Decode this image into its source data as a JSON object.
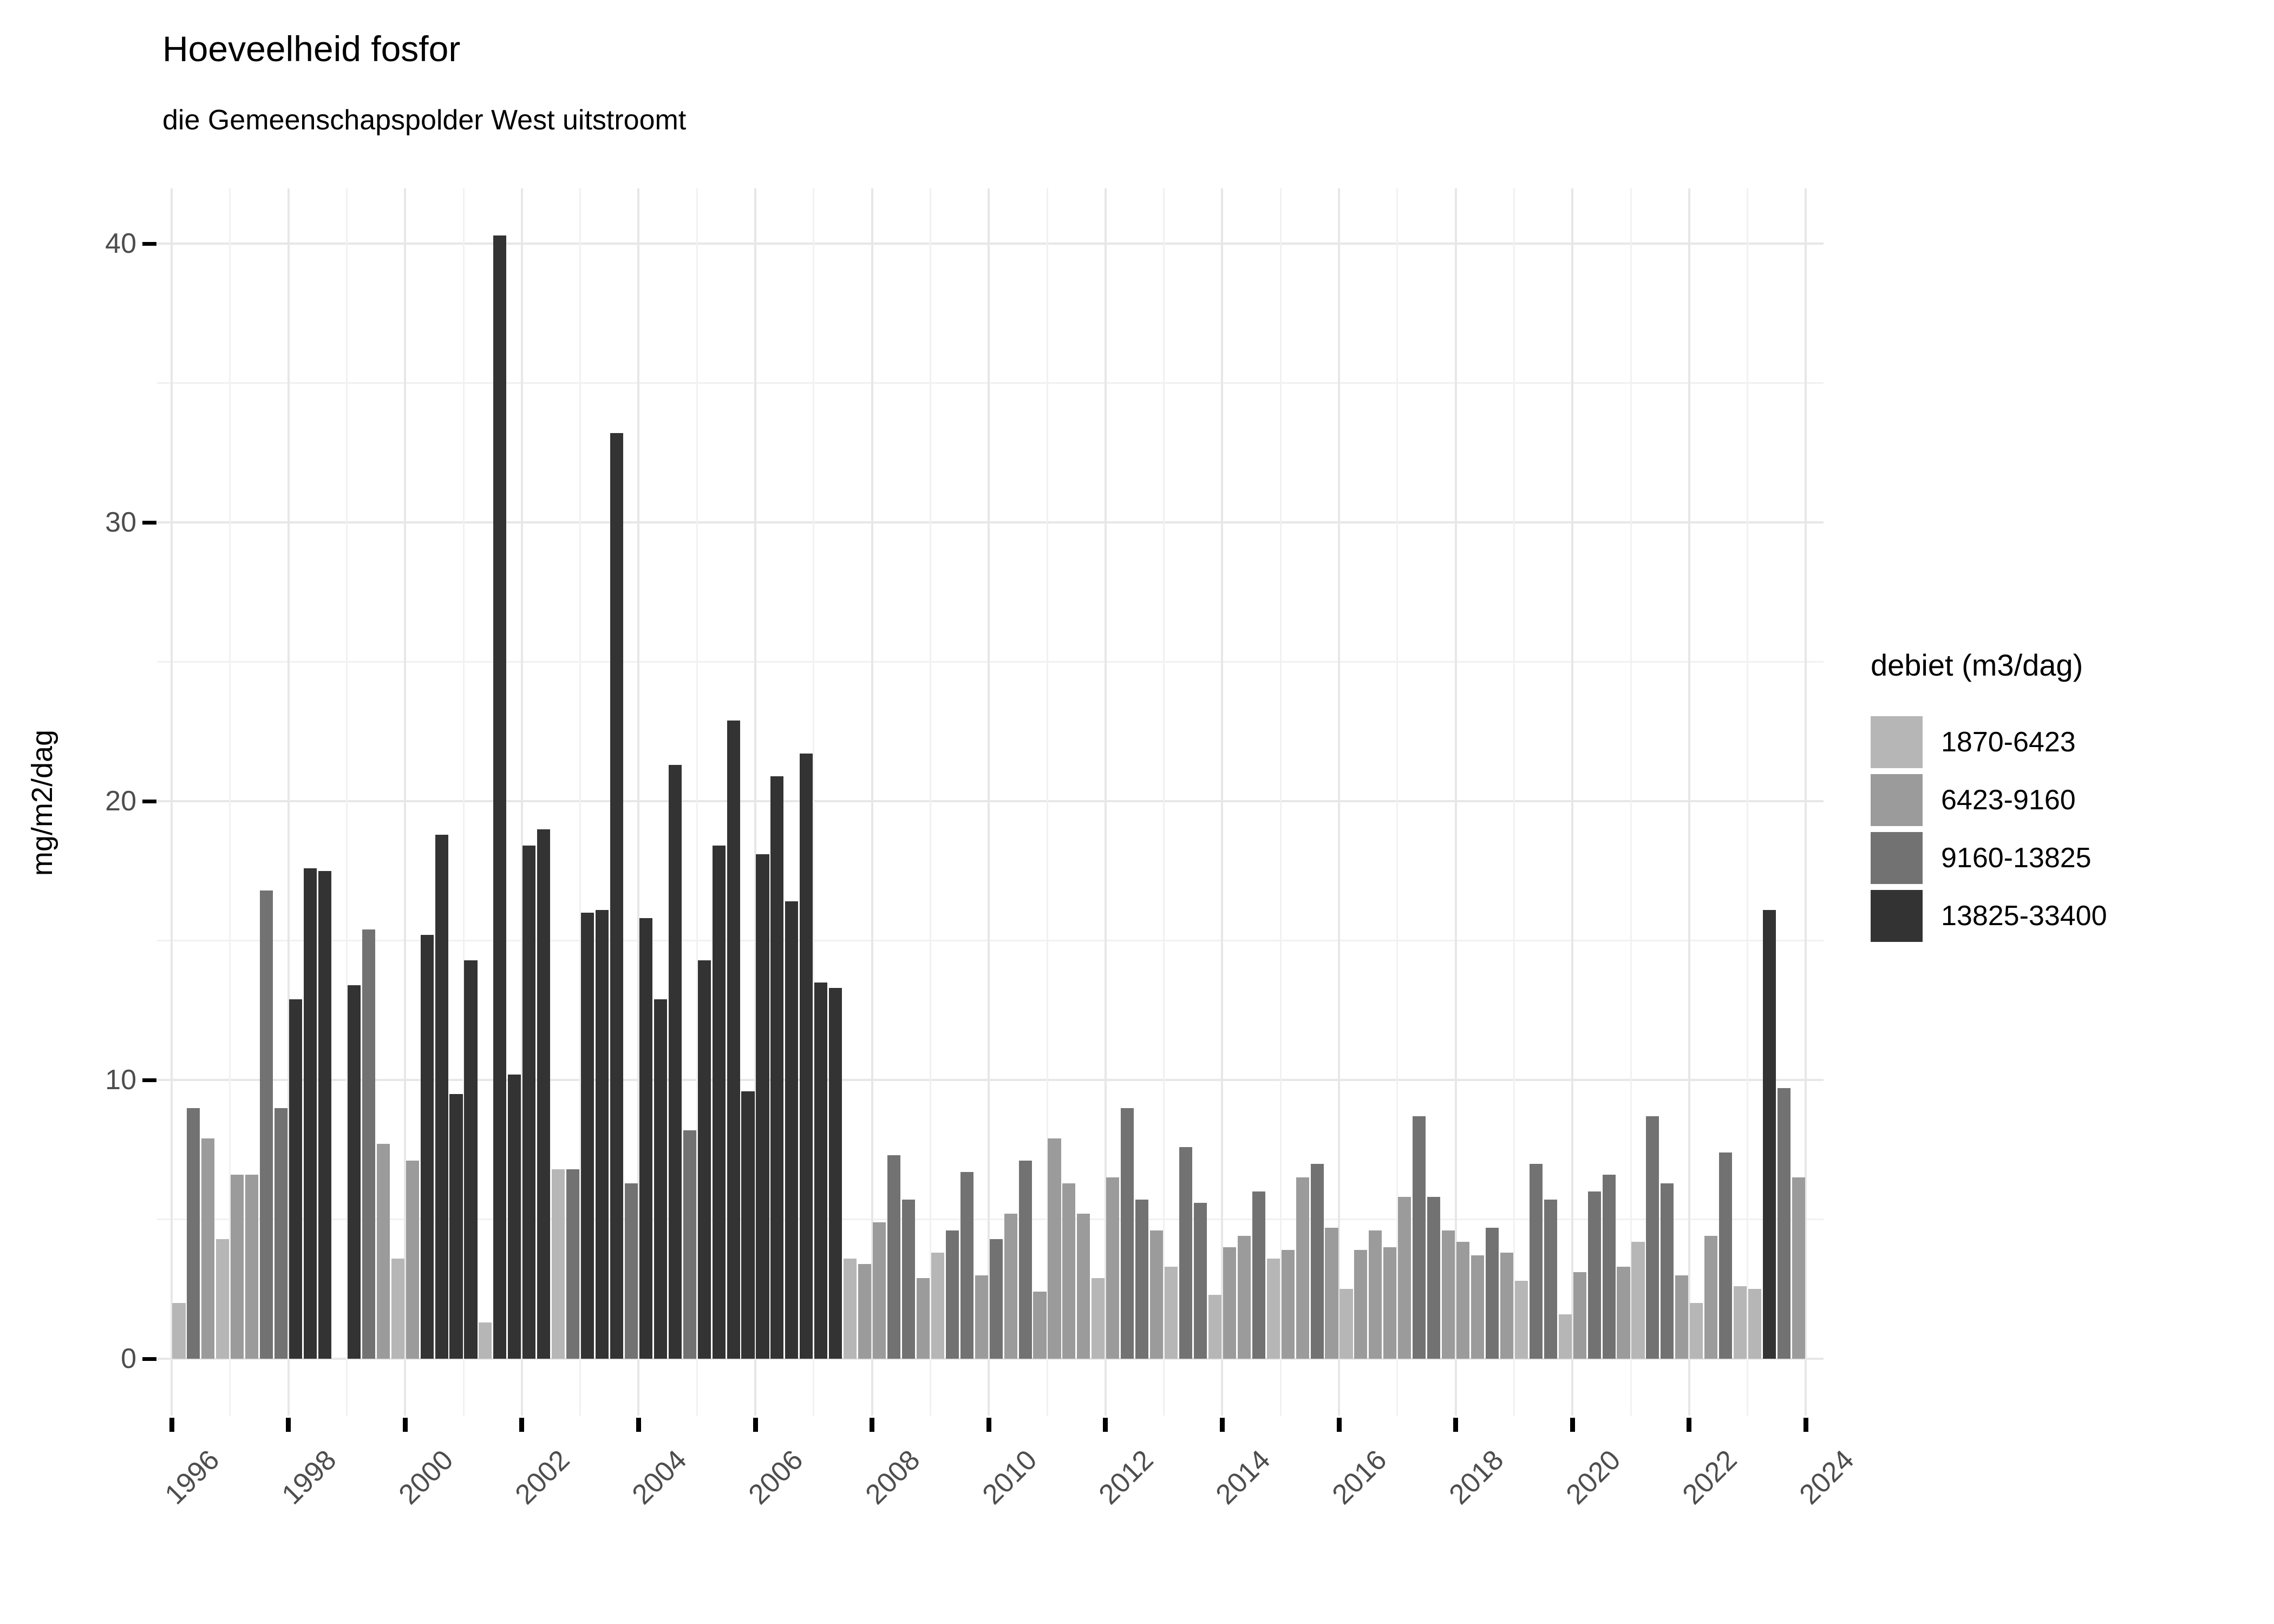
{
  "title": "Hoeveelheid fosfor",
  "subtitle": "die Gemeenschapspolder West uitstroomt",
  "y_axis_title": "mg/m2/dag",
  "legend": {
    "title": "debiet (m3/dag)",
    "items": [
      {
        "label": "1870-6423",
        "color": "#b6b6b6",
        "code": "L"
      },
      {
        "label": "6423-9160",
        "color": "#9b9b9b",
        "code": "M"
      },
      {
        "label": "9160-13825",
        "color": "#727272",
        "code": "D"
      },
      {
        "label": "13825-33400",
        "color": "#333333",
        "code": "K"
      }
    ]
  },
  "axis": {
    "y_tick_labels": [
      "0",
      "10",
      "20",
      "30",
      "40"
    ],
    "x_tick_labels": [
      "1996",
      "1998",
      "2000",
      "2002",
      "2004",
      "2006",
      "2008",
      "2010",
      "2012",
      "2014",
      "2016",
      "2018",
      "2020",
      "2022",
      "2024"
    ],
    "tick_color": "#000000",
    "tick_label_color": "#4d4d4d",
    "grid_major_color": "#e7e7e7",
    "grid_minor_color": "#f1f1f1"
  },
  "chart_data": {
    "type": "bar",
    "title": "Hoeveelheid fosfor",
    "subtitle": "die Gemeenschapspolder West uitstroomt",
    "xlabel": "",
    "ylabel": "mg/m2/dag",
    "ylim": [
      0,
      42
    ],
    "y_major_ticks": [
      0,
      10,
      20,
      30,
      40
    ],
    "y_minor_gridlines": [
      5,
      15,
      25,
      35
    ],
    "x_range_years": [
      1996,
      2024
    ],
    "grid": "on",
    "legend_position": "right",
    "legend_title": "debiet (m3/dag)",
    "bands": {
      "L": "1870-6423",
      "M": "6423-9160",
      "D": "9160-13825",
      "K": "13825-33400"
    },
    "series": [
      {
        "t": "1996Q1",
        "v": 2.0,
        "b": "L"
      },
      {
        "t": "1996Q2",
        "v": 9.0,
        "b": "D"
      },
      {
        "t": "1996Q3",
        "v": 7.9,
        "b": "M"
      },
      {
        "t": "1996Q4",
        "v": 4.3,
        "b": "L"
      },
      {
        "t": "1997Q1",
        "v": 6.6,
        "b": "M"
      },
      {
        "t": "1997Q2",
        "v": 6.6,
        "b": "M"
      },
      {
        "t": "1997Q3",
        "v": 16.8,
        "b": "D"
      },
      {
        "t": "1997Q4",
        "v": 9.0,
        "b": "D"
      },
      {
        "t": "1998Q1",
        "v": 12.9,
        "b": "K"
      },
      {
        "t": "1998Q2",
        "v": 17.6,
        "b": "K"
      },
      {
        "t": "1998Q3",
        "v": 17.5,
        "b": "K"
      },
      {
        "t": "1998Q4",
        "v": null,
        "b": null
      },
      {
        "t": "1999Q1",
        "v": 13.4,
        "b": "K"
      },
      {
        "t": "1999Q2",
        "v": 15.4,
        "b": "D"
      },
      {
        "t": "1999Q3",
        "v": 7.7,
        "b": "M"
      },
      {
        "t": "1999Q4",
        "v": 3.6,
        "b": "L"
      },
      {
        "t": "2000Q1",
        "v": 7.1,
        "b": "M"
      },
      {
        "t": "2000Q2",
        "v": 15.2,
        "b": "K"
      },
      {
        "t": "2000Q3",
        "v": 18.8,
        "b": "K"
      },
      {
        "t": "2000Q4",
        "v": 9.5,
        "b": "K"
      },
      {
        "t": "2001Q1",
        "v": 14.3,
        "b": "K"
      },
      {
        "t": "2001Q2",
        "v": 1.3,
        "b": "L"
      },
      {
        "t": "2001Q3",
        "v": 40.3,
        "b": "K"
      },
      {
        "t": "2001Q4",
        "v": 10.2,
        "b": "K"
      },
      {
        "t": "2002Q1",
        "v": 18.4,
        "b": "K"
      },
      {
        "t": "2002Q2",
        "v": 19.0,
        "b": "K"
      },
      {
        "t": "2002Q3",
        "v": 6.8,
        "b": "L"
      },
      {
        "t": "2002Q4",
        "v": 6.8,
        "b": "D"
      },
      {
        "t": "2003Q1",
        "v": 16.0,
        "b": "K"
      },
      {
        "t": "2003Q2",
        "v": 16.1,
        "b": "K"
      },
      {
        "t": "2003Q3",
        "v": 33.2,
        "b": "K"
      },
      {
        "t": "2003Q4",
        "v": 6.3,
        "b": "D"
      },
      {
        "t": "2004Q1",
        "v": 15.8,
        "b": "K"
      },
      {
        "t": "2004Q2",
        "v": 12.9,
        "b": "K"
      },
      {
        "t": "2004Q3",
        "v": 21.3,
        "b": "K"
      },
      {
        "t": "2004Q4",
        "v": 8.2,
        "b": "D"
      },
      {
        "t": "2005Q1",
        "v": 14.3,
        "b": "K"
      },
      {
        "t": "2005Q2",
        "v": 18.4,
        "b": "K"
      },
      {
        "t": "2005Q3",
        "v": 22.9,
        "b": "K"
      },
      {
        "t": "2005Q4",
        "v": 9.6,
        "b": "K"
      },
      {
        "t": "2006Q1",
        "v": 18.1,
        "b": "K"
      },
      {
        "t": "2006Q2",
        "v": 20.9,
        "b": "K"
      },
      {
        "t": "2006Q3",
        "v": 16.4,
        "b": "K"
      },
      {
        "t": "2006Q4",
        "v": 21.7,
        "b": "K"
      },
      {
        "t": "2007Q1",
        "v": 13.5,
        "b": "K"
      },
      {
        "t": "2007Q2",
        "v": 13.3,
        "b": "K"
      },
      {
        "t": "2007Q3",
        "v": 3.6,
        "b": "L"
      },
      {
        "t": "2007Q4",
        "v": 3.4,
        "b": "M"
      },
      {
        "t": "2008Q1",
        "v": 4.9,
        "b": "M"
      },
      {
        "t": "2008Q2",
        "v": 7.3,
        "b": "D"
      },
      {
        "t": "2008Q3",
        "v": 5.7,
        "b": "D"
      },
      {
        "t": "2008Q4",
        "v": 2.9,
        "b": "M"
      },
      {
        "t": "2009Q1",
        "v": 3.8,
        "b": "L"
      },
      {
        "t": "2009Q2",
        "v": 4.6,
        "b": "D"
      },
      {
        "t": "2009Q3",
        "v": 6.7,
        "b": "D"
      },
      {
        "t": "2009Q4",
        "v": 3.0,
        "b": "M"
      },
      {
        "t": "2010Q1",
        "v": 4.3,
        "b": "D"
      },
      {
        "t": "2010Q2",
        "v": 5.2,
        "b": "M"
      },
      {
        "t": "2010Q3",
        "v": 7.1,
        "b": "D"
      },
      {
        "t": "2010Q4",
        "v": 2.4,
        "b": "M"
      },
      {
        "t": "2011Q1",
        "v": 7.9,
        "b": "M"
      },
      {
        "t": "2011Q2",
        "v": 6.3,
        "b": "M"
      },
      {
        "t": "2011Q3",
        "v": 5.2,
        "b": "M"
      },
      {
        "t": "2011Q4",
        "v": 2.9,
        "b": "L"
      },
      {
        "t": "2012Q1",
        "v": 6.5,
        "b": "M"
      },
      {
        "t": "2012Q2",
        "v": 9.0,
        "b": "D"
      },
      {
        "t": "2012Q3",
        "v": 5.7,
        "b": "D"
      },
      {
        "t": "2012Q4",
        "v": 4.6,
        "b": "M"
      },
      {
        "t": "2013Q1",
        "v": 3.3,
        "b": "L"
      },
      {
        "t": "2013Q2",
        "v": 7.6,
        "b": "D"
      },
      {
        "t": "2013Q3",
        "v": 5.6,
        "b": "D"
      },
      {
        "t": "2013Q4",
        "v": 2.3,
        "b": "L"
      },
      {
        "t": "2014Q1",
        "v": 4.0,
        "b": "M"
      },
      {
        "t": "2014Q2",
        "v": 4.4,
        "b": "M"
      },
      {
        "t": "2014Q3",
        "v": 6.0,
        "b": "D"
      },
      {
        "t": "2014Q4",
        "v": 3.6,
        "b": "L"
      },
      {
        "t": "2015Q1",
        "v": 3.9,
        "b": "M"
      },
      {
        "t": "2015Q2",
        "v": 6.5,
        "b": "M"
      },
      {
        "t": "2015Q3",
        "v": 7.0,
        "b": "D"
      },
      {
        "t": "2015Q4",
        "v": 4.7,
        "b": "M"
      },
      {
        "t": "2016Q1",
        "v": 2.5,
        "b": "L"
      },
      {
        "t": "2016Q2",
        "v": 3.9,
        "b": "M"
      },
      {
        "t": "2016Q3",
        "v": 4.6,
        "b": "M"
      },
      {
        "t": "2016Q4",
        "v": 4.0,
        "b": "M"
      },
      {
        "t": "2017Q1",
        "v": 5.8,
        "b": "M"
      },
      {
        "t": "2017Q2",
        "v": 8.7,
        "b": "D"
      },
      {
        "t": "2017Q3",
        "v": 5.8,
        "b": "D"
      },
      {
        "t": "2017Q4",
        "v": 4.6,
        "b": "M"
      },
      {
        "t": "2018Q1",
        "v": 4.2,
        "b": "M"
      },
      {
        "t": "2018Q2",
        "v": 3.7,
        "b": "M"
      },
      {
        "t": "2018Q3",
        "v": 4.7,
        "b": "D"
      },
      {
        "t": "2018Q4",
        "v": 3.8,
        "b": "M"
      },
      {
        "t": "2019Q1",
        "v": 2.8,
        "b": "L"
      },
      {
        "t": "2019Q2",
        "v": 7.0,
        "b": "D"
      },
      {
        "t": "2019Q3",
        "v": 5.7,
        "b": "D"
      },
      {
        "t": "2019Q4",
        "v": 1.6,
        "b": "L"
      },
      {
        "t": "2020Q1",
        "v": 3.1,
        "b": "M"
      },
      {
        "t": "2020Q2",
        "v": 6.0,
        "b": "D"
      },
      {
        "t": "2020Q3",
        "v": 6.6,
        "b": "D"
      },
      {
        "t": "2020Q4",
        "v": 3.3,
        "b": "M"
      },
      {
        "t": "2021Q1",
        "v": 4.2,
        "b": "L"
      },
      {
        "t": "2021Q2",
        "v": 8.7,
        "b": "D"
      },
      {
        "t": "2021Q3",
        "v": 6.3,
        "b": "D"
      },
      {
        "t": "2021Q4",
        "v": 3.0,
        "b": "M"
      },
      {
        "t": "2022Q1",
        "v": 2.0,
        "b": "L"
      },
      {
        "t": "2022Q2",
        "v": 4.4,
        "b": "M"
      },
      {
        "t": "2022Q3",
        "v": 7.4,
        "b": "D"
      },
      {
        "t": "2022Q4",
        "v": 2.6,
        "b": "L"
      },
      {
        "t": "2023Q1",
        "v": 2.5,
        "b": "L"
      },
      {
        "t": "2023Q2",
        "v": 16.1,
        "b": "K"
      },
      {
        "t": "2023Q3",
        "v": 9.7,
        "b": "D"
      },
      {
        "t": "2023Q4",
        "v": 6.5,
        "b": "M"
      }
    ]
  }
}
